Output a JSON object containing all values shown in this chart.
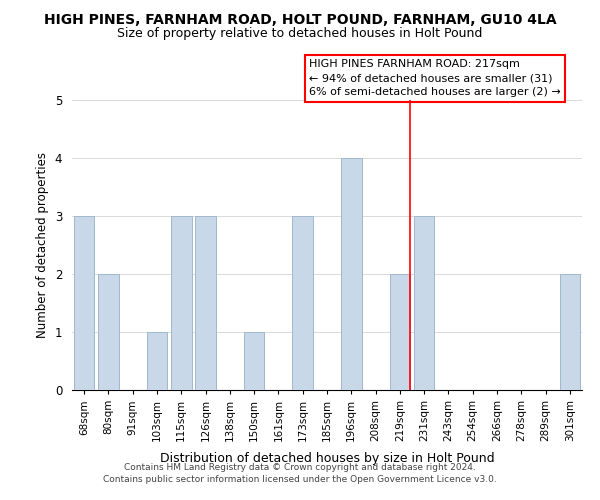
{
  "title": "HIGH PINES, FARNHAM ROAD, HOLT POUND, FARNHAM, GU10 4LA",
  "subtitle": "Size of property relative to detached houses in Holt Pound",
  "xlabel": "Distribution of detached houses by size in Holt Pound",
  "ylabel": "Number of detached properties",
  "categories": [
    "68sqm",
    "80sqm",
    "91sqm",
    "103sqm",
    "115sqm",
    "126sqm",
    "138sqm",
    "150sqm",
    "161sqm",
    "173sqm",
    "185sqm",
    "196sqm",
    "208sqm",
    "219sqm",
    "231sqm",
    "243sqm",
    "254sqm",
    "266sqm",
    "278sqm",
    "289sqm",
    "301sqm"
  ],
  "values": [
    3,
    2,
    0,
    1,
    3,
    3,
    0,
    1,
    0,
    3,
    0,
    4,
    0,
    2,
    3,
    0,
    0,
    0,
    0,
    0,
    2
  ],
  "bar_color": "#c8d8e8",
  "bar_edge_color": "#a0b8cc",
  "red_line_index": 13,
  "annotation_title": "HIGH PINES FARNHAM ROAD: 217sqm",
  "annotation_line1": "← 94% of detached houses are smaller (31)",
  "annotation_line2": "6% of semi-detached houses are larger (2) →",
  "footer1": "Contains HM Land Registry data © Crown copyright and database right 2024.",
  "footer2": "Contains public sector information licensed under the Open Government Licence v3.0.",
  "ylim": [
    0,
    5
  ],
  "title_fontsize": 10,
  "subtitle_fontsize": 9,
  "background_color": "#ffffff"
}
